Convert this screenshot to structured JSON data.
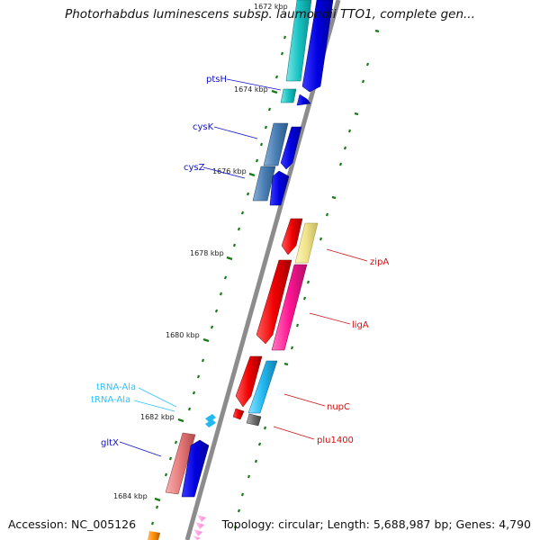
{
  "title": "Photorhabdus luminescens subsp. laumondii TTO1, complete gen...",
  "footer": {
    "accession": "Accession: NC_005126",
    "summary": "Topology: circular; Length: 5,688,987 bp; Genes: 4,790"
  },
  "colors": {
    "backbone": "#8c8c8c",
    "tick": "#1a7a1a",
    "label_forward": "#1010c8",
    "label_reverse": "#d01010",
    "label_trna": "#30c0ff"
  },
  "ticks": [
    {
      "id": "tick-1672",
      "label": "1672 kbp"
    },
    {
      "id": "tick-1674",
      "label": "1674 kbp"
    },
    {
      "id": "tick-1676",
      "label": "1676 kbp"
    },
    {
      "id": "tick-1678",
      "label": "1678 kbp"
    },
    {
      "id": "tick-1680",
      "label": "1680 kbp"
    },
    {
      "id": "tick-1682",
      "label": "1682 kbp"
    },
    {
      "id": "tick-1684",
      "label": "1684 kbp"
    }
  ],
  "gene_labels": [
    {
      "id": "ptsH",
      "text": "ptsH",
      "color": "#1010c8"
    },
    {
      "id": "cysK",
      "text": "cysK",
      "color": "#1010c8"
    },
    {
      "id": "cysZ",
      "text": "cysZ",
      "color": "#1010c8"
    },
    {
      "id": "zipA",
      "text": "zipA",
      "color": "#d01010"
    },
    {
      "id": "ligA",
      "text": "ligA",
      "color": "#d01010"
    },
    {
      "id": "nupC",
      "text": "nupC",
      "color": "#d01010"
    },
    {
      "id": "plu1400",
      "text": "plu1400",
      "color": "#d01010"
    },
    {
      "id": "trna-ala-1",
      "text": "tRNA-Ala",
      "color": "#30c0ff"
    },
    {
      "id": "trna-ala-2",
      "text": "tRNA-Ala",
      "color": "#30c0ff"
    },
    {
      "id": "gltX",
      "text": "gltX",
      "color": "#1010c8"
    }
  ]
}
